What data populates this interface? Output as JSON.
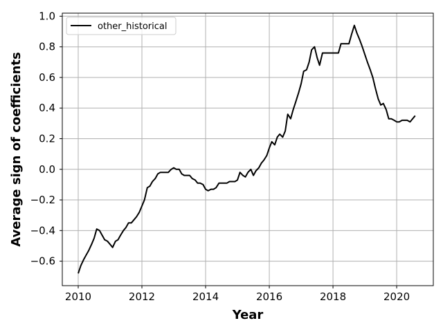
{
  "chart_data": {
    "type": "line",
    "title": "",
    "xlabel": "Year",
    "ylabel": "Average sign of coefficients",
    "xlim": [
      2009.5,
      2021.15
    ],
    "ylim": [
      -0.76,
      1.02
    ],
    "xticks": [
      2010,
      2012,
      2014,
      2016,
      2018,
      2020
    ],
    "xtick_labels": [
      "2010",
      "2012",
      "2014",
      "2016",
      "2018",
      "2020"
    ],
    "yticks": [
      -0.6,
      -0.4,
      -0.2,
      0.0,
      0.2,
      0.4,
      0.6,
      0.8,
      1.0
    ],
    "ytick_labels": [
      "−0.6",
      "−0.4",
      "−0.2",
      "0.0",
      "0.2",
      "0.4",
      "0.6",
      "0.8",
      "1.0"
    ],
    "grid": true,
    "legend_position": "top-left",
    "series": [
      {
        "name": "other_historical",
        "color": "#000000",
        "x": [
          2010.0,
          2010.08,
          2010.17,
          2010.25,
          2010.33,
          2010.42,
          2010.5,
          2010.58,
          2010.67,
          2010.75,
          2010.83,
          2010.92,
          2011.0,
          2011.08,
          2011.17,
          2011.25,
          2011.33,
          2011.42,
          2011.5,
          2011.58,
          2011.67,
          2011.75,
          2011.83,
          2011.92,
          2012.0,
          2012.08,
          2012.17,
          2012.25,
          2012.33,
          2012.42,
          2012.5,
          2012.58,
          2012.67,
          2012.75,
          2012.83,
          2012.92,
          2013.0,
          2013.08,
          2013.17,
          2013.25,
          2013.33,
          2013.42,
          2013.5,
          2013.58,
          2013.67,
          2013.75,
          2013.83,
          2013.92,
          2014.0,
          2014.08,
          2014.17,
          2014.25,
          2014.33,
          2014.42,
          2014.5,
          2014.58,
          2014.67,
          2014.75,
          2014.83,
          2014.92,
          2015.0,
          2015.08,
          2015.17,
          2015.25,
          2015.33,
          2015.42,
          2015.5,
          2015.58,
          2015.67,
          2015.75,
          2015.83,
          2015.92,
          2016.0,
          2016.08,
          2016.17,
          2016.25,
          2016.33,
          2016.42,
          2016.5,
          2016.58,
          2016.67,
          2016.75,
          2016.83,
          2016.92,
          2017.0,
          2017.08,
          2017.17,
          2017.25,
          2017.33,
          2017.42,
          2017.5,
          2017.58,
          2017.67,
          2017.75,
          2017.83,
          2017.92,
          2018.0,
          2018.08,
          2018.17,
          2018.25,
          2018.33,
          2018.42,
          2018.5,
          2018.58,
          2018.67,
          2018.75,
          2018.83,
          2018.92,
          2019.0,
          2019.08,
          2019.17,
          2019.25,
          2019.33,
          2019.42,
          2019.5,
          2019.58,
          2019.67,
          2019.75,
          2019.83,
          2019.92,
          2020.0,
          2020.08,
          2020.17,
          2020.25,
          2020.33,
          2020.42,
          2020.5,
          2020.58
        ],
        "y": [
          -0.68,
          -0.63,
          -0.59,
          -0.56,
          -0.53,
          -0.49,
          -0.45,
          -0.39,
          -0.4,
          -0.43,
          -0.46,
          -0.47,
          -0.49,
          -0.51,
          -0.47,
          -0.46,
          -0.43,
          -0.4,
          -0.38,
          -0.35,
          -0.35,
          -0.33,
          -0.31,
          -0.28,
          -0.24,
          -0.2,
          -0.12,
          -0.11,
          -0.08,
          -0.06,
          -0.03,
          -0.02,
          -0.02,
          -0.02,
          -0.02,
          0.0,
          0.01,
          0.0,
          0.0,
          -0.03,
          -0.04,
          -0.04,
          -0.04,
          -0.06,
          -0.07,
          -0.09,
          -0.09,
          -0.1,
          -0.13,
          -0.14,
          -0.13,
          -0.13,
          -0.12,
          -0.09,
          -0.09,
          -0.09,
          -0.09,
          -0.08,
          -0.08,
          -0.08,
          -0.07,
          -0.02,
          -0.04,
          -0.05,
          -0.02,
          0.0,
          -0.04,
          -0.01,
          0.01,
          0.04,
          0.06,
          0.09,
          0.14,
          0.18,
          0.16,
          0.21,
          0.23,
          0.21,
          0.25,
          0.36,
          0.33,
          0.39,
          0.44,
          0.5,
          0.56,
          0.64,
          0.65,
          0.7,
          0.78,
          0.8,
          0.73,
          0.68,
          0.76,
          0.76,
          0.76,
          0.76,
          0.76,
          0.76,
          0.76,
          0.82,
          0.82,
          0.82,
          0.82,
          0.88,
          0.94,
          0.89,
          0.85,
          0.8,
          0.75,
          0.7,
          0.65,
          0.6,
          0.53,
          0.46,
          0.42,
          0.43,
          0.39,
          0.33,
          0.33,
          0.32,
          0.31,
          0.31,
          0.32,
          0.32,
          0.32,
          0.31,
          0.33,
          0.35
        ]
      }
    ]
  }
}
